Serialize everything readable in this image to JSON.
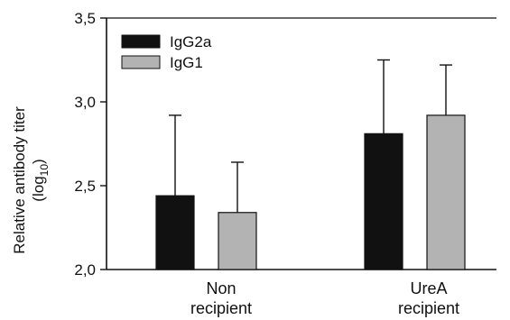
{
  "chart_data": {
    "type": "bar",
    "ylabel_line1": "Relative antibody titer",
    "ylabel_line2_prefix": "(log",
    "ylabel_line2_sub": "10",
    "ylabel_line2_suffix": ")",
    "ylim": [
      2.0,
      3.5
    ],
    "yticks": [
      "2,0",
      "2,5",
      "3,0",
      "3,5"
    ],
    "ytick_values": [
      2.0,
      2.5,
      3.0,
      3.5
    ],
    "categories": [
      {
        "line1": "Non",
        "line2": "recipient"
      },
      {
        "line1": "UreA",
        "line2": "recipient"
      }
    ],
    "series": [
      {
        "name": "IgG2a",
        "color": "#111111",
        "values": [
          2.44,
          2.81
        ],
        "errors": [
          0.48,
          0.44
        ]
      },
      {
        "name": "IgG1",
        "color": "#b3b3b3",
        "values": [
          2.34,
          2.92
        ],
        "errors": [
          0.3,
          0.3
        ]
      }
    ],
    "legend_position": "top-left",
    "grid": false
  }
}
